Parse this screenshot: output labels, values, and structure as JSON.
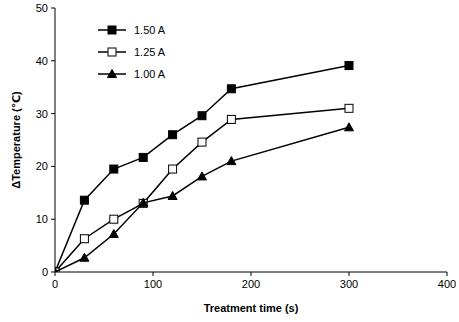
{
  "chart_data": {
    "type": "line",
    "x_label": "Treatment time (s)",
    "y_label": "ΔTemperature (℃)",
    "x": [
      0,
      30,
      60,
      90,
      120,
      150,
      180,
      300
    ],
    "series": [
      {
        "name": "1.50 A",
        "color": "#000000",
        "marker": "square",
        "values": [
          0,
          13.6,
          19.5,
          21.7,
          26,
          29.6,
          34.7,
          39.1
        ]
      },
      {
        "name": "1.25 A",
        "color": "#000000",
        "marker": "square-open",
        "values": [
          0,
          6.3,
          10,
          13,
          19.5,
          24.6,
          28.9,
          31
        ]
      },
      {
        "name": "1.00 A",
        "color": "#000000",
        "marker": "triangle",
        "values": [
          0,
          2.7,
          7.2,
          13.1,
          14.4,
          18.1,
          21,
          27.4
        ]
      }
    ],
    "xlim": [
      0,
      400
    ],
    "ylim": [
      0,
      50
    ],
    "xticks": [
      0,
      100,
      200,
      300,
      400
    ],
    "yticks": [
      0,
      10,
      20,
      30,
      40,
      50
    ],
    "grid": false,
    "legend": "upper left"
  }
}
